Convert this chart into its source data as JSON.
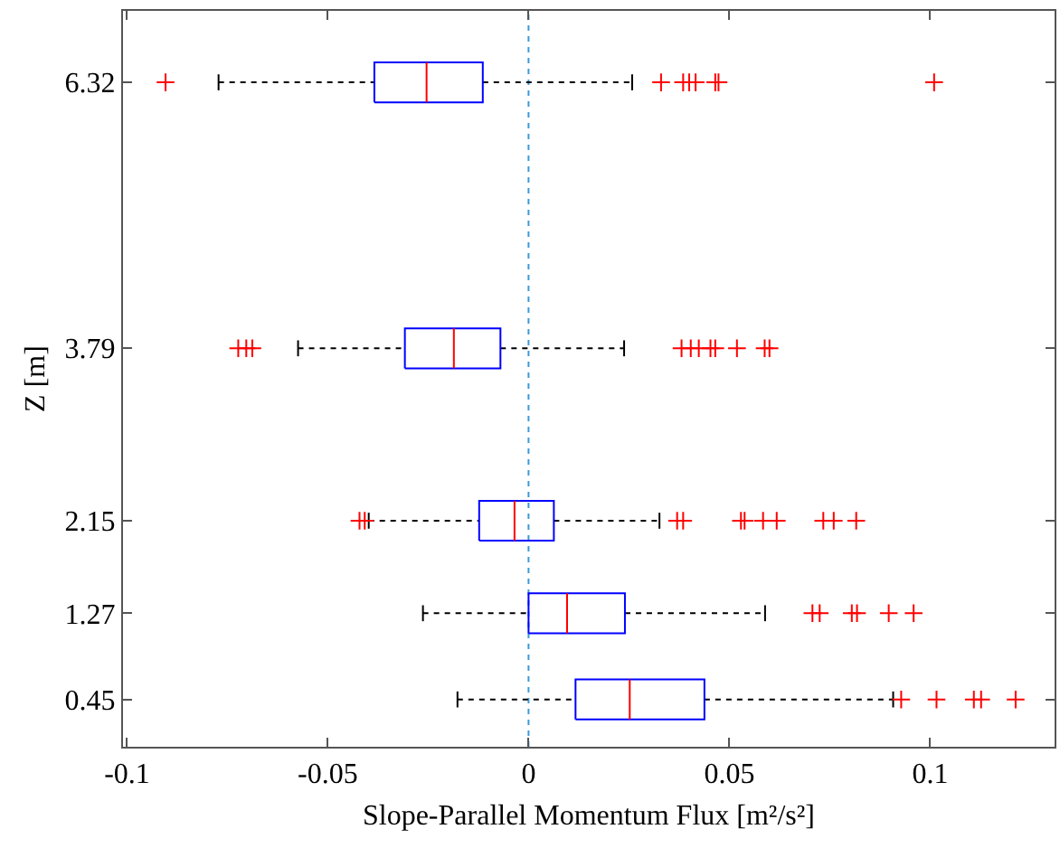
{
  "chart_data": {
    "type": "box",
    "orientation": "horizontal",
    "xlabel": "Slope-Parallel Momentum Flux [m²/s²]",
    "ylabel": "Z [m]",
    "x": [
      0.45,
      1.27,
      2.15,
      3.79,
      6.32
    ],
    "series": [
      {
        "color": "#0000ff",
        "boxes": [
          {
            "low": -0.0177,
            "q1": 0.0117,
            "median": 0.0252,
            "q3": 0.0438,
            "high": 0.0908,
            "outliers": [
              0.0928,
              0.1016,
              0.1109,
              0.1127,
              0.1213
            ]
          },
          {
            "low": -0.0263,
            "q1": 0.0,
            "median": 0.0096,
            "q3": 0.024,
            "high": 0.0589,
            "outliers": [
              0.0707,
              0.0725,
              0.0805,
              0.0818,
              0.0897,
              0.0959
            ]
          },
          {
            "low": -0.0398,
            "q1": -0.0123,
            "median": -0.0035,
            "q3": 0.0063,
            "high": 0.0326,
            "outliers": [
              -0.0421,
              -0.0408,
              0.037,
              0.0385,
              0.0529,
              0.0538,
              0.0584,
              0.0618,
              0.0734,
              0.076,
              0.0816
            ]
          },
          {
            "low": -0.0574,
            "q1": -0.0308,
            "median": -0.0186,
            "q3": -0.007,
            "high": 0.0238,
            "outliers": [
              -0.0723,
              -0.0703,
              -0.0688,
              0.0381,
              0.0404,
              0.0424,
              0.0453,
              0.0465,
              0.0519,
              0.0588,
              0.06
            ]
          },
          {
            "low": -0.0772,
            "q1": -0.0384,
            "median": -0.0254,
            "q3": -0.0114,
            "high": 0.0258,
            "outliers": [
              -0.0904,
              0.033,
              0.0385,
              0.04,
              0.0416,
              0.0465,
              0.0473,
              0.101
            ]
          }
        ]
      }
    ],
    "xlim": [
      -0.101,
      0.131
    ],
    "xticks": [
      -0.1,
      -0.05,
      0,
      0.05,
      0.1
    ],
    "ylim": [
      0,
      7
    ],
    "yticks": [
      0.45,
      1.27,
      2.15,
      3.79,
      6.32
    ],
    "ref_lines": [
      {
        "axis": "x",
        "value": 0,
        "color": "#3a9ad9",
        "line_style": "dotted"
      }
    ],
    "marker": "cross",
    "grid": false
  }
}
